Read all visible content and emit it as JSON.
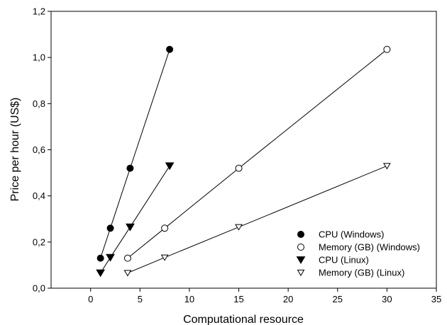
{
  "chart_data": {
    "type": "scatter",
    "xlabel": "Computational resource",
    "ylabel": "Price per hour (US$)",
    "xlim": [
      -4,
      35
    ],
    "ylim": [
      0,
      1.2
    ],
    "x_ticks": [
      0,
      5,
      10,
      15,
      20,
      25,
      30,
      35
    ],
    "x_tick_labels": [
      "0",
      "5",
      "10",
      "15",
      "20",
      "25",
      "30",
      "35"
    ],
    "y_ticks": [
      0,
      0.2,
      0.4,
      0.6,
      0.8,
      1.0,
      1.2
    ],
    "y_tick_labels": [
      "0,0",
      "0,2",
      "0,4",
      "0,6",
      "0,8",
      "1,0",
      "1,2"
    ],
    "grid": false,
    "legend_position": "bottom-right",
    "series": [
      {
        "name": "CPU (Windows)",
        "marker": "circle-filled",
        "x": [
          1,
          2,
          4,
          8
        ],
        "y": [
          0.13,
          0.26,
          0.52,
          1.035
        ]
      },
      {
        "name": "Memory (GB) (Windows)",
        "marker": "circle-open",
        "x": [
          3.75,
          7.5,
          15,
          30
        ],
        "y": [
          0.13,
          0.26,
          0.52,
          1.035
        ]
      },
      {
        "name": "CPU (Linux)",
        "marker": "triangle-down-filled",
        "x": [
          1,
          2,
          4,
          8
        ],
        "y": [
          0.066,
          0.133,
          0.265,
          0.53
        ]
      },
      {
        "name": "Memory (GB) (Linux)",
        "marker": "triangle-down-open",
        "x": [
          3.75,
          7.5,
          15,
          30
        ],
        "y": [
          0.066,
          0.133,
          0.265,
          0.53
        ]
      }
    ]
  }
}
